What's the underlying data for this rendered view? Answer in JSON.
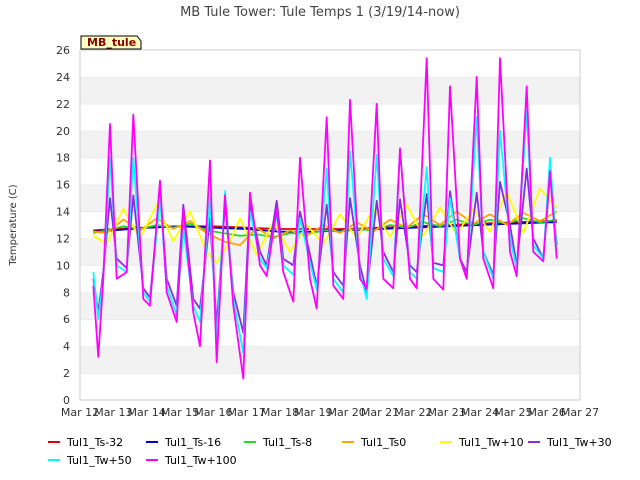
{
  "chart_data": {
    "type": "line",
    "title": "MB Tule Tower: Tule Temps 1 (3/19/14-now)",
    "ylabel": "Temperature (C)",
    "xlabel": "",
    "ylim": [
      0,
      26
    ],
    "yticks": [
      0,
      2,
      4,
      6,
      8,
      10,
      12,
      14,
      16,
      18,
      20,
      22,
      24,
      26
    ],
    "xlim": [
      12,
      27
    ],
    "xtick_values": [
      12,
      13,
      14,
      15,
      16,
      17,
      18,
      19,
      20,
      21,
      22,
      23,
      24,
      25,
      26,
      27
    ],
    "xtick_labels": [
      "Mar 12",
      "Mar 13",
      "Mar 14",
      "Mar 15",
      "Mar 16",
      "Mar 17",
      "Mar 18",
      "Mar 19",
      "Mar 20",
      "Mar 21",
      "Mar 22",
      "Mar 23",
      "Mar 24",
      "Mar 25",
      "Mar 26",
      "Mar 27"
    ],
    "station_badge": "MB_tule",
    "grid": "horizontal bands",
    "legend_position": "bottom",
    "series": [
      {
        "name": "Tul1_Ts-32",
        "color": "#dd0000",
        "x": [
          12.4,
          13,
          14,
          15,
          16,
          17,
          18,
          19,
          20,
          21,
          22,
          23,
          24,
          25,
          26,
          26.3
        ],
        "y": [
          12.6,
          12.7,
          12.8,
          12.9,
          12.9,
          12.8,
          12.7,
          12.7,
          12.7,
          12.8,
          12.9,
          13.0,
          13.1,
          13.2,
          13.3,
          13.3
        ]
      },
      {
        "name": "Tul1_Ts-16",
        "color": "#0000cc",
        "x": [
          12.4,
          13,
          14,
          15,
          16,
          17,
          18,
          19,
          20,
          21,
          22,
          23,
          24,
          25,
          26,
          26.3
        ],
        "y": [
          12.5,
          12.6,
          12.8,
          12.9,
          12.8,
          12.7,
          12.5,
          12.5,
          12.6,
          12.7,
          12.8,
          12.9,
          13.0,
          13.1,
          13.2,
          13.2
        ]
      },
      {
        "name": "Tul1_Ts-8",
        "color": "#22dd22",
        "x": [
          12.4,
          12.8,
          13.3,
          13.8,
          14.3,
          14.8,
          15.3,
          15.8,
          16.3,
          16.8,
          17.3,
          17.8,
          18.3,
          18.8,
          19.3,
          19.8,
          20.3,
          20.8,
          21.3,
          21.8,
          22.3,
          22.8,
          23.3,
          23.8,
          24.3,
          24.8,
          25.3,
          25.8,
          26.3
        ],
        "y": [
          12.4,
          12.6,
          12.9,
          12.7,
          13.0,
          12.8,
          13.1,
          12.6,
          12.4,
          12.2,
          12.3,
          12.1,
          12.4,
          12.3,
          12.6,
          12.5,
          12.7,
          12.6,
          13.0,
          12.8,
          13.2,
          12.9,
          13.4,
          13.0,
          13.4,
          13.1,
          13.5,
          13.2,
          13.4
        ]
      },
      {
        "name": "Tul1_Ts0",
        "color": "#ffa500",
        "x": [
          12.4,
          12.8,
          13.3,
          13.8,
          14.3,
          14.8,
          15.3,
          15.8,
          16.3,
          16.8,
          17.3,
          17.8,
          18.3,
          18.8,
          19.3,
          19.8,
          20.3,
          20.8,
          21.3,
          21.8,
          22.3,
          22.8,
          23.3,
          23.8,
          24.3,
          24.8,
          25.3,
          25.8,
          26.3
        ],
        "y": [
          12.5,
          12.4,
          13.4,
          12.6,
          13.5,
          12.7,
          13.3,
          12.4,
          11.8,
          11.5,
          12.8,
          12.0,
          12.6,
          12.2,
          13.0,
          12.4,
          13.2,
          12.5,
          13.4,
          12.8,
          13.8,
          13.0,
          14.0,
          13.1,
          13.8,
          13.0,
          13.9,
          13.3,
          14.0
        ]
      },
      {
        "name": "Tul1_Tw+10",
        "color": "#ffff00",
        "x": [
          12.4,
          12.8,
          13.3,
          13.8,
          14.3,
          14.8,
          15.3,
          15.8,
          16.1,
          16.5,
          16.8,
          17.3,
          17.8,
          18.3,
          18.8,
          19.3,
          19.8,
          20.3,
          20.8,
          21.3,
          21.8,
          22.3,
          22.8,
          23.3,
          23.8,
          24.3,
          24.8,
          25.3,
          25.8,
          26.3
        ],
        "y": [
          12.2,
          11.6,
          14.2,
          12.0,
          14.5,
          11.8,
          14.0,
          11.0,
          10.2,
          11.8,
          13.5,
          10.8,
          13.2,
          11.0,
          13.0,
          11.6,
          13.8,
          12.0,
          14.2,
          12.1,
          14.5,
          12.2,
          14.3,
          12.3,
          14.2,
          12.5,
          15.5,
          12.4,
          15.7,
          14.3
        ]
      },
      {
        "name": "Tul1_Tw+30",
        "color": "#8a2be2",
        "x": [
          12.4,
          12.55,
          12.7,
          12.9,
          13.1,
          13.4,
          13.6,
          13.9,
          14.1,
          14.4,
          14.6,
          14.9,
          15.1,
          15.4,
          15.6,
          15.9,
          16.1,
          16.35,
          16.6,
          16.9,
          17.1,
          17.4,
          17.6,
          17.9,
          18.1,
          18.4,
          18.6,
          18.9,
          19.1,
          19.4,
          19.6,
          19.9,
          20.1,
          20.4,
          20.6,
          20.9,
          21.1,
          21.4,
          21.6,
          21.9,
          22.1,
          22.4,
          22.6,
          22.9,
          23.1,
          23.4,
          23.6,
          23.9,
          24.1,
          24.4,
          24.6,
          24.9,
          25.1,
          25.4,
          25.6,
          25.9,
          26.1,
          26.3
        ],
        "y": [
          9.0,
          6.5,
          9.5,
          15.0,
          10.5,
          9.8,
          15.2,
          8.3,
          7.6,
          15.3,
          9.0,
          7.0,
          14.5,
          7.5,
          6.8,
          13.5,
          5.5,
          14.6,
          8.0,
          5.0,
          14.6,
          11.0,
          10.0,
          14.8,
          10.5,
          10.0,
          14.0,
          10.8,
          8.5,
          14.5,
          9.5,
          8.5,
          15.0,
          10.0,
          8.0,
          14.8,
          11.0,
          9.5,
          14.9,
          10.0,
          9.5,
          15.3,
          10.2,
          10.0,
          15.5,
          10.5,
          9.5,
          15.4,
          11.0,
          9.3,
          16.2,
          13.0,
          10.0,
          17.2,
          12.0,
          10.5,
          16.8,
          11.5
        ]
      },
      {
        "name": "Tul1_Tw+50",
        "color": "#00ffff",
        "x": [
          12.4,
          12.55,
          12.7,
          12.9,
          13.1,
          13.4,
          13.6,
          13.9,
          14.1,
          14.4,
          14.6,
          14.9,
          15.1,
          15.4,
          15.6,
          15.9,
          16.1,
          16.35,
          16.6,
          16.9,
          17.1,
          17.4,
          17.6,
          17.9,
          18.1,
          18.4,
          18.6,
          18.9,
          19.1,
          19.4,
          19.6,
          19.9,
          20.1,
          20.4,
          20.6,
          20.9,
          21.1,
          21.4,
          21.6,
          21.9,
          22.1,
          22.4,
          22.6,
          22.9,
          23.1,
          23.4,
          23.6,
          23.9,
          24.1,
          24.4,
          24.6,
          24.9,
          25.1,
          25.4,
          25.6,
          25.9,
          26.1,
          26.3
        ],
        "y": [
          9.5,
          6.0,
          9.0,
          18.0,
          10.0,
          9.5,
          18.0,
          8.0,
          7.3,
          15.0,
          8.5,
          6.3,
          12.8,
          7.0,
          5.8,
          15.0,
          4.2,
          15.5,
          7.5,
          3.5,
          14.0,
          10.5,
          9.8,
          13.8,
          10.0,
          9.3,
          13.5,
          10.2,
          8.2,
          17.2,
          9.0,
          8.0,
          18.5,
          9.5,
          7.5,
          18.2,
          10.5,
          9.2,
          18.5,
          9.5,
          9.0,
          17.3,
          9.8,
          9.5,
          15.0,
          10.5,
          9.0,
          21.0,
          11.0,
          9.0,
          20.0,
          12.0,
          9.8,
          21.5,
          11.5,
          10.5,
          18.0,
          11.0
        ]
      },
      {
        "name": "Tul1_Tw+100",
        "color": "#ff00ff",
        "x": [
          12.4,
          12.55,
          12.7,
          12.9,
          13.1,
          13.4,
          13.6,
          13.9,
          14.1,
          14.4,
          14.6,
          14.9,
          15.1,
          15.4,
          15.6,
          15.9,
          16.1,
          16.35,
          16.6,
          16.9,
          17.1,
          17.4,
          17.6,
          17.9,
          18.1,
          18.4,
          18.6,
          18.9,
          19.1,
          19.4,
          19.6,
          19.9,
          20.1,
          20.4,
          20.6,
          20.9,
          21.1,
          21.4,
          21.6,
          21.9,
          22.1,
          22.4,
          22.6,
          22.9,
          23.1,
          23.4,
          23.6,
          23.9,
          24.1,
          24.4,
          24.6,
          24.9,
          25.1,
          25.4,
          25.6,
          25.9,
          26.1,
          26.3
        ],
        "y": [
          8.5,
          3.2,
          9.0,
          20.5,
          9.0,
          9.5,
          21.2,
          7.5,
          7.0,
          16.3,
          8.0,
          5.8,
          14.2,
          6.5,
          4.0,
          17.8,
          2.8,
          15.2,
          7.0,
          1.6,
          15.4,
          10.0,
          9.2,
          14.2,
          9.5,
          7.3,
          18.0,
          9.0,
          6.8,
          21.0,
          8.5,
          7.5,
          22.3,
          9.0,
          8.3,
          22.0,
          9.0,
          8.3,
          18.7,
          9.0,
          8.3,
          25.4,
          9.0,
          8.2,
          23.3,
          10.5,
          9.0,
          24.0,
          10.5,
          8.3,
          25.4,
          11.0,
          9.2,
          23.3,
          11.0,
          10.3,
          17.0,
          10.5
        ]
      }
    ]
  }
}
